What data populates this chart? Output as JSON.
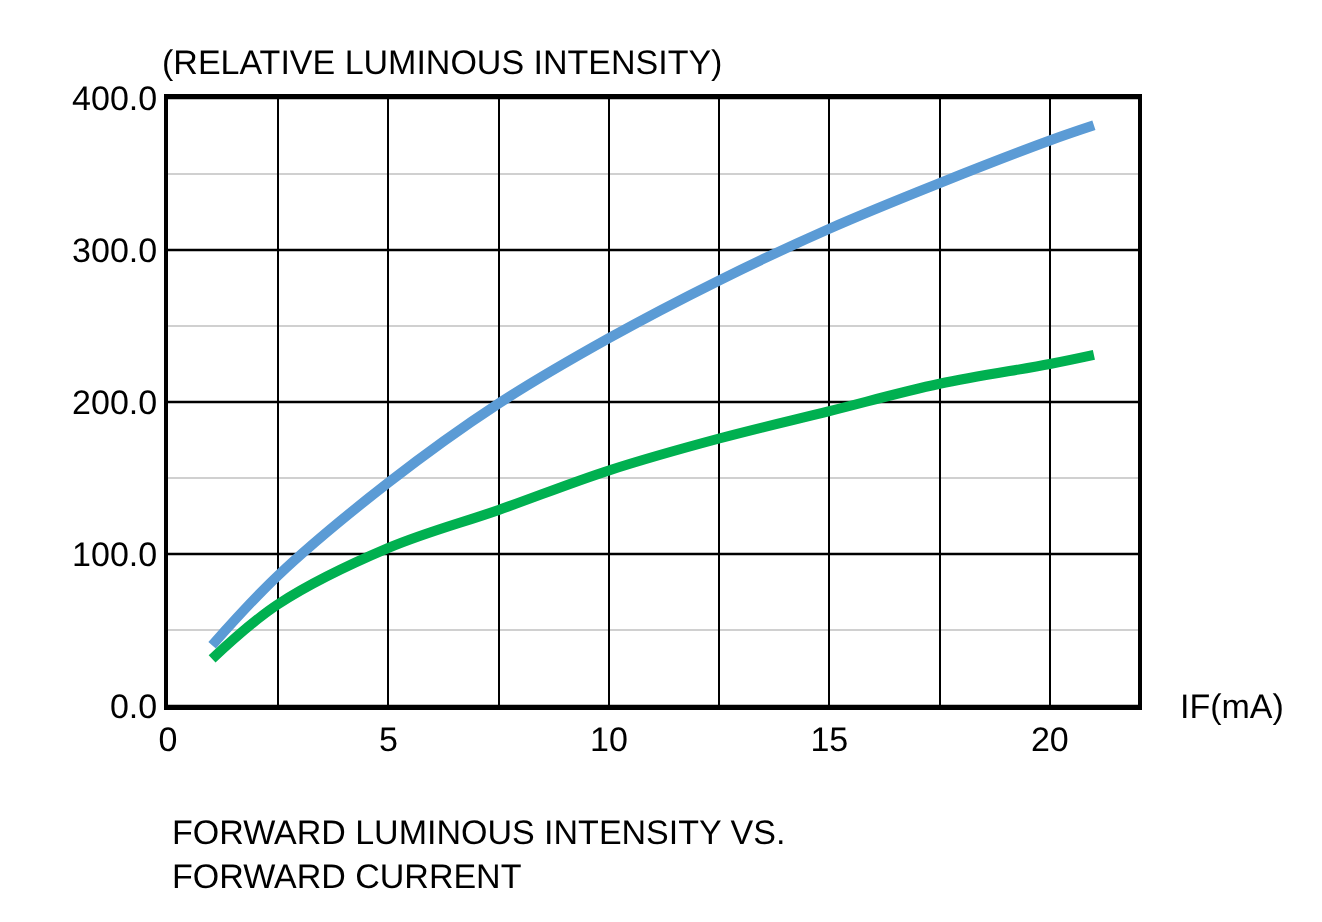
{
  "chart_data": {
    "type": "line",
    "title": "FORWARD LUMINOUS INTENSITY VS.\nFORWARD CURRENT",
    "xlabel": "IF(mA)",
    "ylabel": "(RELATIVE LUMINOUS INTENSITY)",
    "x": [
      1,
      2.5,
      5,
      7.5,
      10,
      12.5,
      15,
      17.5,
      20,
      21
    ],
    "series": [
      {
        "color": "#5b9bd5",
        "values": [
          40,
          86,
          147,
          199,
          242,
          280,
          314,
          344,
          372,
          382
        ]
      },
      {
        "color": "#00b050",
        "values": [
          31,
          67,
          104,
          129,
          155,
          176,
          194,
          212,
          225,
          231
        ]
      }
    ],
    "xlim": [
      0,
      22
    ],
    "xticks": [
      0,
      {
        "value": 2.5,
        "label": null
      },
      5,
      {
        "value": 7.5,
        "label": null
      },
      10,
      {
        "value": 12.5,
        "label": null
      },
      15,
      {
        "value": 17.5,
        "label": null
      },
      20
    ],
    "ylim": [
      0,
      400
    ],
    "yticks": [
      {
        "value": 0,
        "label": "0.0"
      },
      {
        "value": 50,
        "label": null
      },
      {
        "value": 100,
        "label": "100.0"
      },
      {
        "value": 150,
        "label": null
      },
      {
        "value": 200,
        "label": "200.0"
      },
      {
        "value": 250,
        "label": null
      },
      {
        "value": 300,
        "label": "300.0"
      },
      {
        "value": 350,
        "label": null
      },
      {
        "value": 400,
        "label": "400.0"
      }
    ],
    "grid": true,
    "marker": "none",
    "line_style": "solid"
  }
}
